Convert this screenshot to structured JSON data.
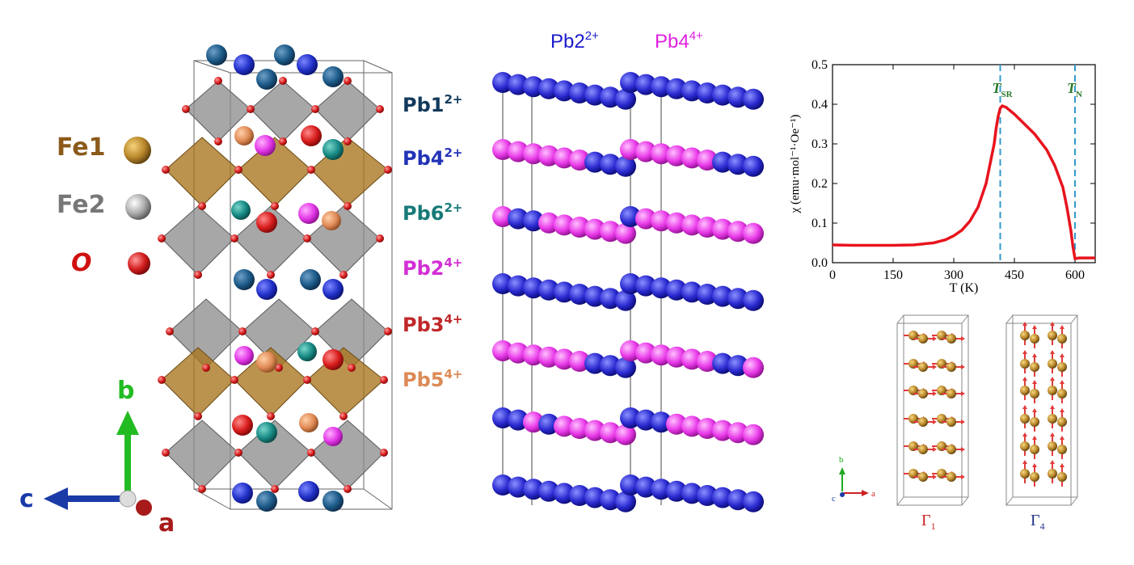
{
  "legend": {
    "items": [
      {
        "label": "Fe1",
        "color": "#8B5A1A",
        "sphere": "#B8862A"
      },
      {
        "label": "Fe2",
        "color": "#777777",
        "sphere": "#9a9a9a"
      },
      {
        "label": "O",
        "color": "#d01010",
        "sphere": "#d21c1c"
      }
    ]
  },
  "pb_sites": [
    {
      "base": "Pb1",
      "charge": "2+",
      "color": "#123a5c"
    },
    {
      "base": "Pb4",
      "charge": "2+",
      "color": "#2233b8"
    },
    {
      "base": "Pb6",
      "charge": "2+",
      "color": "#177a78"
    },
    {
      "base": "Pb2",
      "charge": "4+",
      "color": "#d32fd6"
    },
    {
      "base": "Pb3",
      "charge": "4+",
      "color": "#c0282a"
    },
    {
      "base": "Pb5",
      "charge": "4+",
      "color": "#dc8a56"
    }
  ],
  "layer_labels": [
    {
      "base": "Pb2",
      "charge": "2+",
      "color": "#1a1acc"
    },
    {
      "base": "Pb4",
      "charge": "4+",
      "color": "#e020e0"
    }
  ],
  "axes_triad": {
    "b": "b",
    "c": "c",
    "a": "a",
    "colors": {
      "b": "#22bb22",
      "c": "#1a3aa8",
      "a": "#a81a1a"
    }
  },
  "small_axes": {
    "b": "b",
    "c": "c",
    "a": "a"
  },
  "chart_data": {
    "type": "line",
    "xlabel": "T (K)",
    "ylabel": "χ (emu·mol⁻¹·Oe⁻¹)",
    "xlim": [
      0,
      650
    ],
    "ylim": [
      0,
      0.5
    ],
    "xticks": [
      0,
      150,
      300,
      450,
      600
    ],
    "yticks": [
      0.0,
      0.1,
      0.2,
      0.3,
      0.4,
      0.5
    ],
    "ytick_labels": [
      "0.0",
      "0.1",
      "0.2",
      "0.3",
      "0.4",
      "0.5"
    ],
    "series": [
      {
        "color": "#e8141e",
        "x": [
          0,
          50,
          100,
          150,
          200,
          250,
          280,
          300,
          320,
          340,
          360,
          380,
          390,
          400,
          405,
          410,
          415,
          420,
          430,
          450,
          470,
          500,
          530,
          550,
          570,
          580,
          590,
          595,
          600,
          610,
          650
        ],
        "y": [
          0.045,
          0.044,
          0.044,
          0.044,
          0.045,
          0.05,
          0.058,
          0.068,
          0.082,
          0.105,
          0.14,
          0.2,
          0.25,
          0.3,
          0.34,
          0.37,
          0.39,
          0.396,
          0.392,
          0.375,
          0.355,
          0.325,
          0.285,
          0.245,
          0.19,
          0.14,
          0.08,
          0.04,
          0.01,
          0.012,
          0.012
        ]
      }
    ],
    "vlines": [
      {
        "label_main": "T",
        "label_sub": "SR",
        "x": 415,
        "color": "#3399cc"
      },
      {
        "label_main": "T",
        "label_sub": "N",
        "x": 600,
        "color": "#3399cc"
      }
    ]
  },
  "panels": [
    {
      "label": "Γ",
      "sub": "1",
      "color": "#cc2222"
    },
    {
      "label": "Γ",
      "sub": "4",
      "color": "#223388"
    }
  ]
}
